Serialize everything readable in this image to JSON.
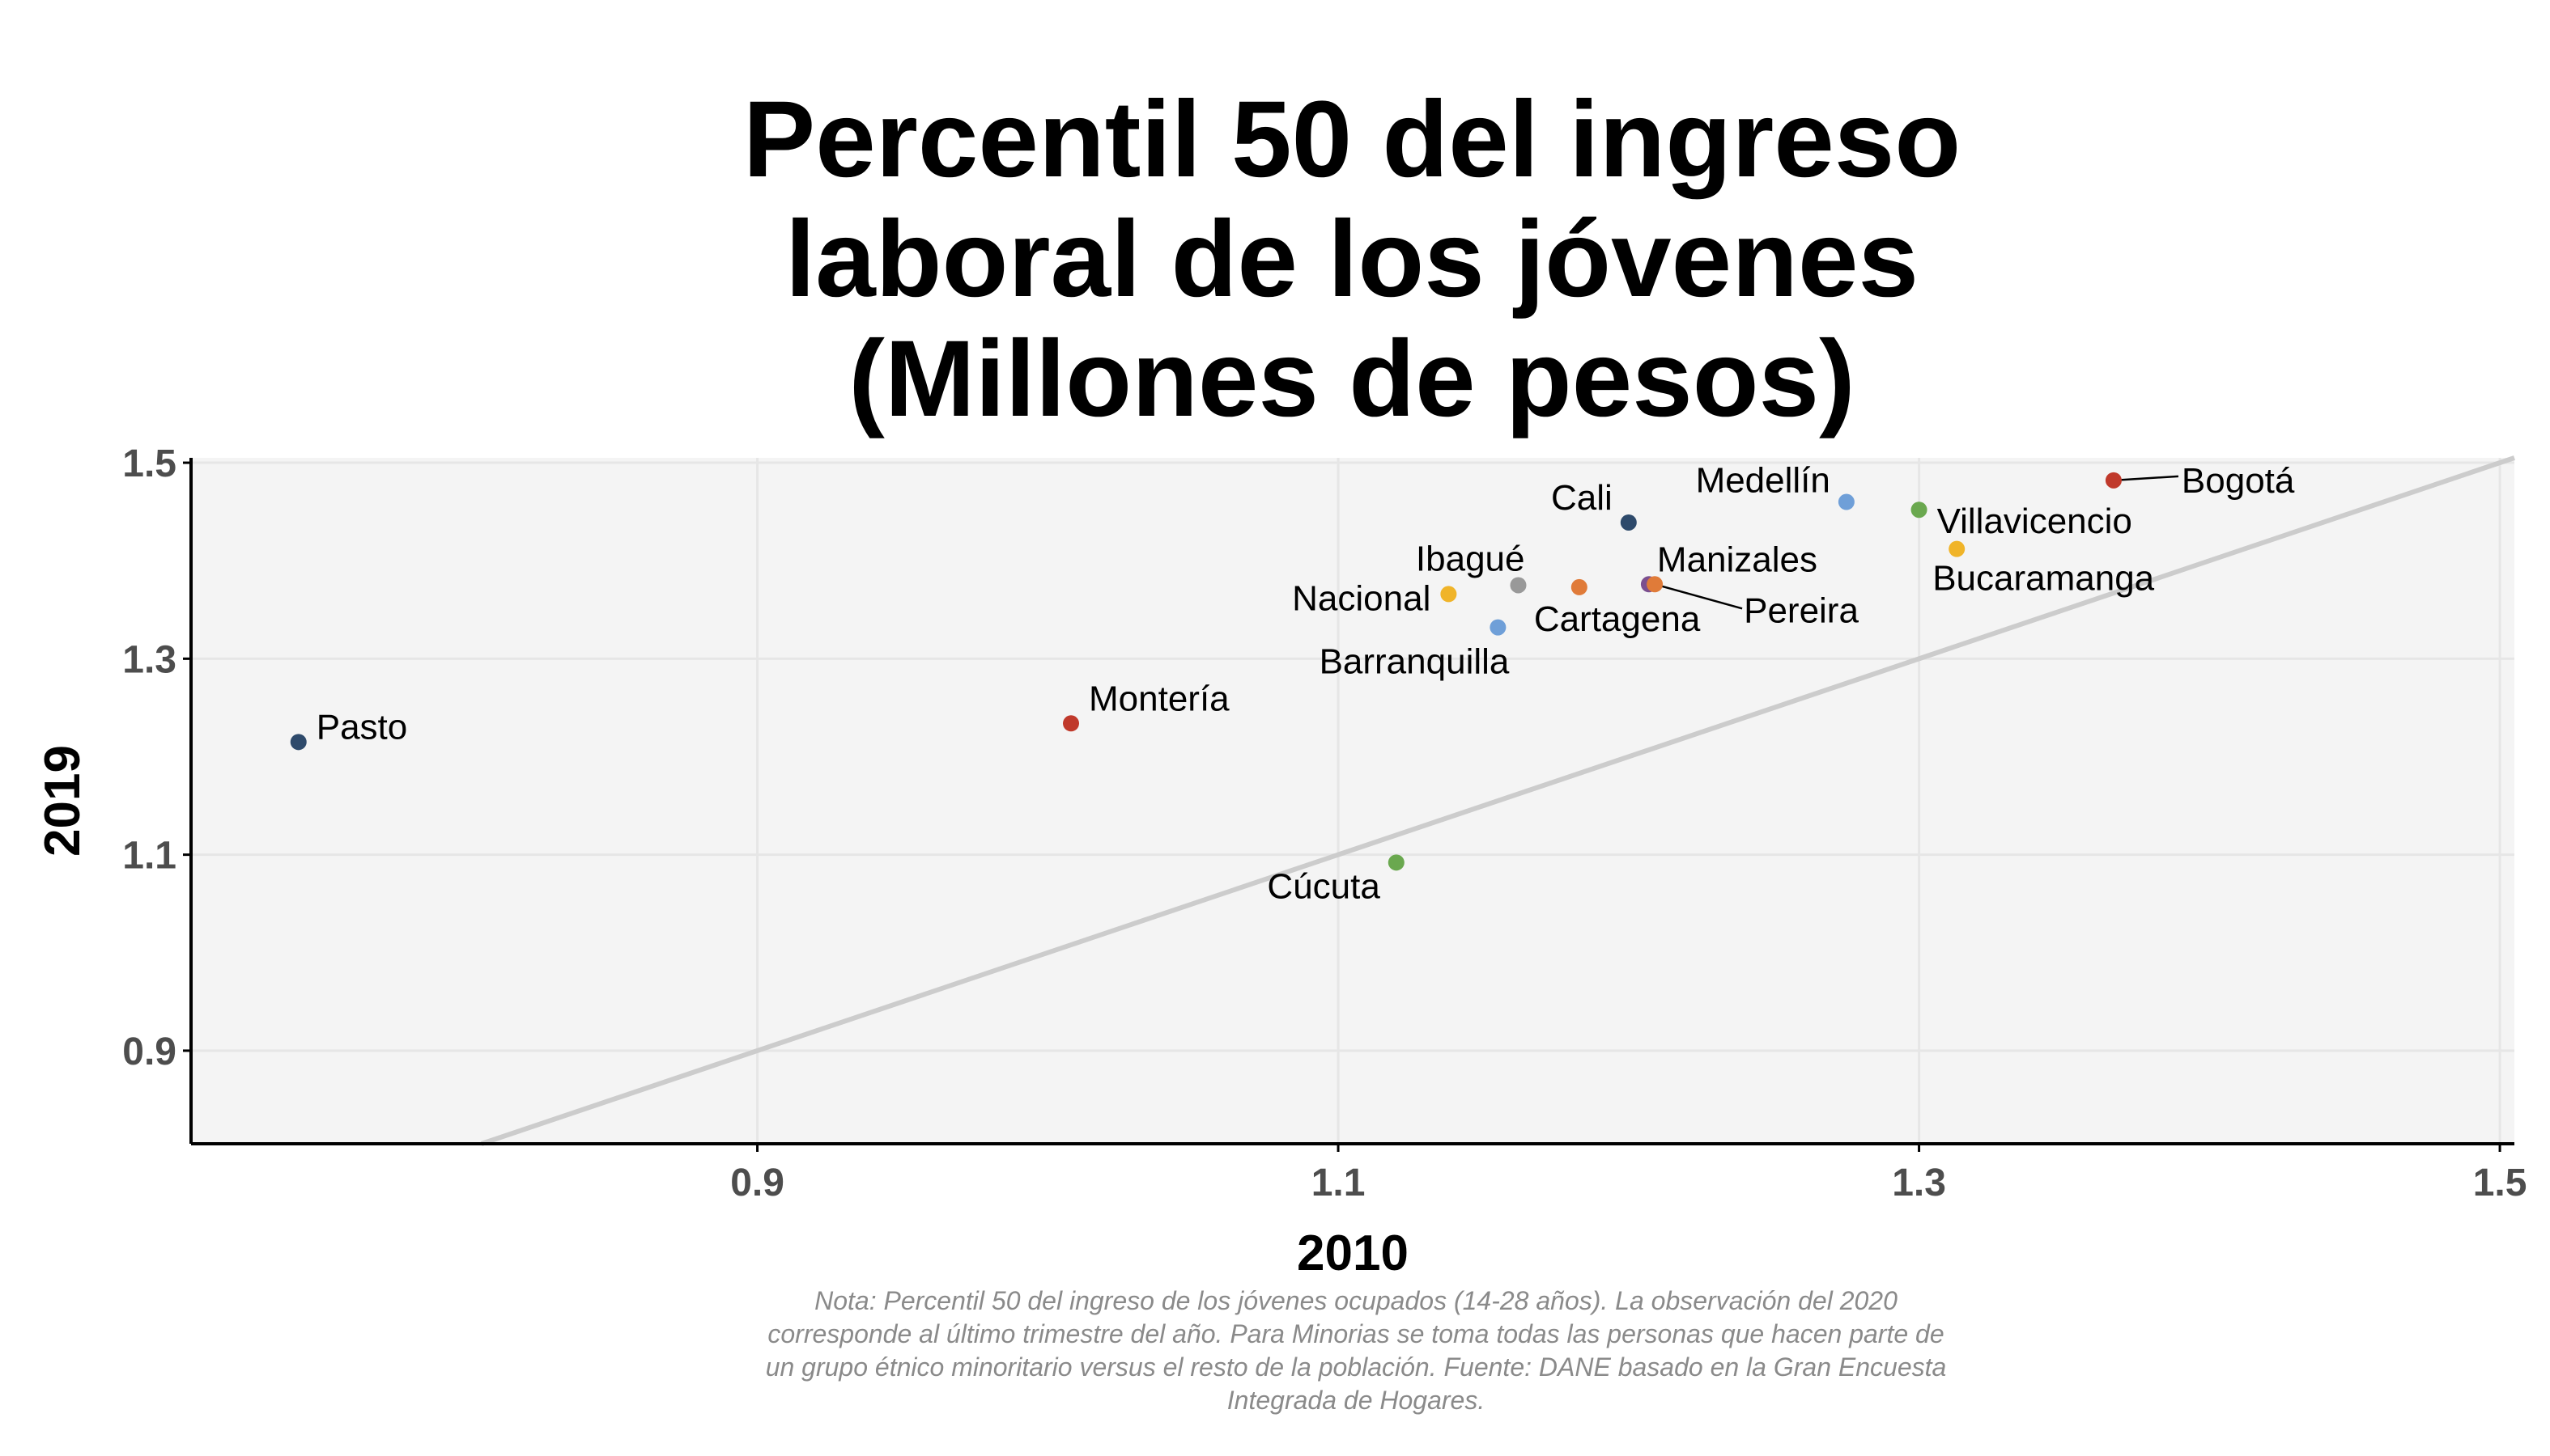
{
  "chart_data": {
    "type": "scatter",
    "title": [
      "Percentil 50 del ingreso",
      "laboral de los jóvenes",
      "(Millones de pesos)"
    ],
    "xlabel": "2010",
    "ylabel": "2019",
    "xlim": [
      0.705,
      1.505
    ],
    "ylim": [
      0.805,
      1.505
    ],
    "xticks": [
      0.9,
      1.1,
      1.3,
      1.5
    ],
    "yticks": [
      0.9,
      1.1,
      1.3,
      1.5
    ],
    "xtick_labels": [
      "0.9",
      "1.1",
      "1.3",
      "1.5"
    ],
    "ytick_labels": [
      "0.9",
      "1.1",
      "1.3",
      "1.5"
    ],
    "grid": true,
    "reference_line": "y = x",
    "points": [
      {
        "label": "Pasto",
        "x": 0.742,
        "y": 1.215,
        "color": "#2e4a6b"
      },
      {
        "label": "Montería",
        "x": 1.008,
        "y": 1.234,
        "color": "#c0392b"
      },
      {
        "label": "Cúcuta",
        "x": 1.12,
        "y": 1.092,
        "color": "#6aa84f"
      },
      {
        "label": "Nacional",
        "x": 1.138,
        "y": 1.366,
        "color": "#f0b429"
      },
      {
        "label": "Barranquilla",
        "x": 1.155,
        "y": 1.332,
        "color": "#6f9fd8"
      },
      {
        "label": "Ibagué",
        "x": 1.162,
        "y": 1.375,
        "color": "#999999"
      },
      {
        "label": "Cartagena",
        "x": 1.183,
        "y": 1.373,
        "color": "#e07b39"
      },
      {
        "label": "Cali",
        "x": 1.2,
        "y": 1.439,
        "color": "#2e4a6b"
      },
      {
        "label": "Manizales",
        "x": 1.207,
        "y": 1.376,
        "color": "#7b4f8f"
      },
      {
        "label": "Pereira",
        "x": 1.209,
        "y": 1.376,
        "color": "#e07b39"
      },
      {
        "label": "Medellín",
        "x": 1.275,
        "y": 1.46,
        "color": "#6f9fd8"
      },
      {
        "label": "Villavicencio",
        "x": 1.3,
        "y": 1.452,
        "color": "#6aa84f"
      },
      {
        "label": "Bucaramanga",
        "x": 1.313,
        "y": 1.412,
        "color": "#f0b429"
      },
      {
        "label": "Bogotá",
        "x": 1.367,
        "y": 1.482,
        "color": "#c0392b"
      }
    ]
  },
  "note": [
    "Nota: Percentil 50 del ingreso de los jóvenes ocupados (14-28 años). La observación del 2020",
    "corresponde al último trimestre del año. Para Minorias se toma todas las personas que hacen parte de",
    "un grupo étnico minoritario versus el resto de la población. Fuente: DANE basado en la Gran Encuesta",
    "Integrada de Hogares."
  ],
  "colors": {
    "panel_background": "#f4f4f4",
    "grid": "#e6e6e6",
    "reference_line": "#cccccc",
    "axis_line": "#000000",
    "note_text": "#8a8a8a"
  }
}
